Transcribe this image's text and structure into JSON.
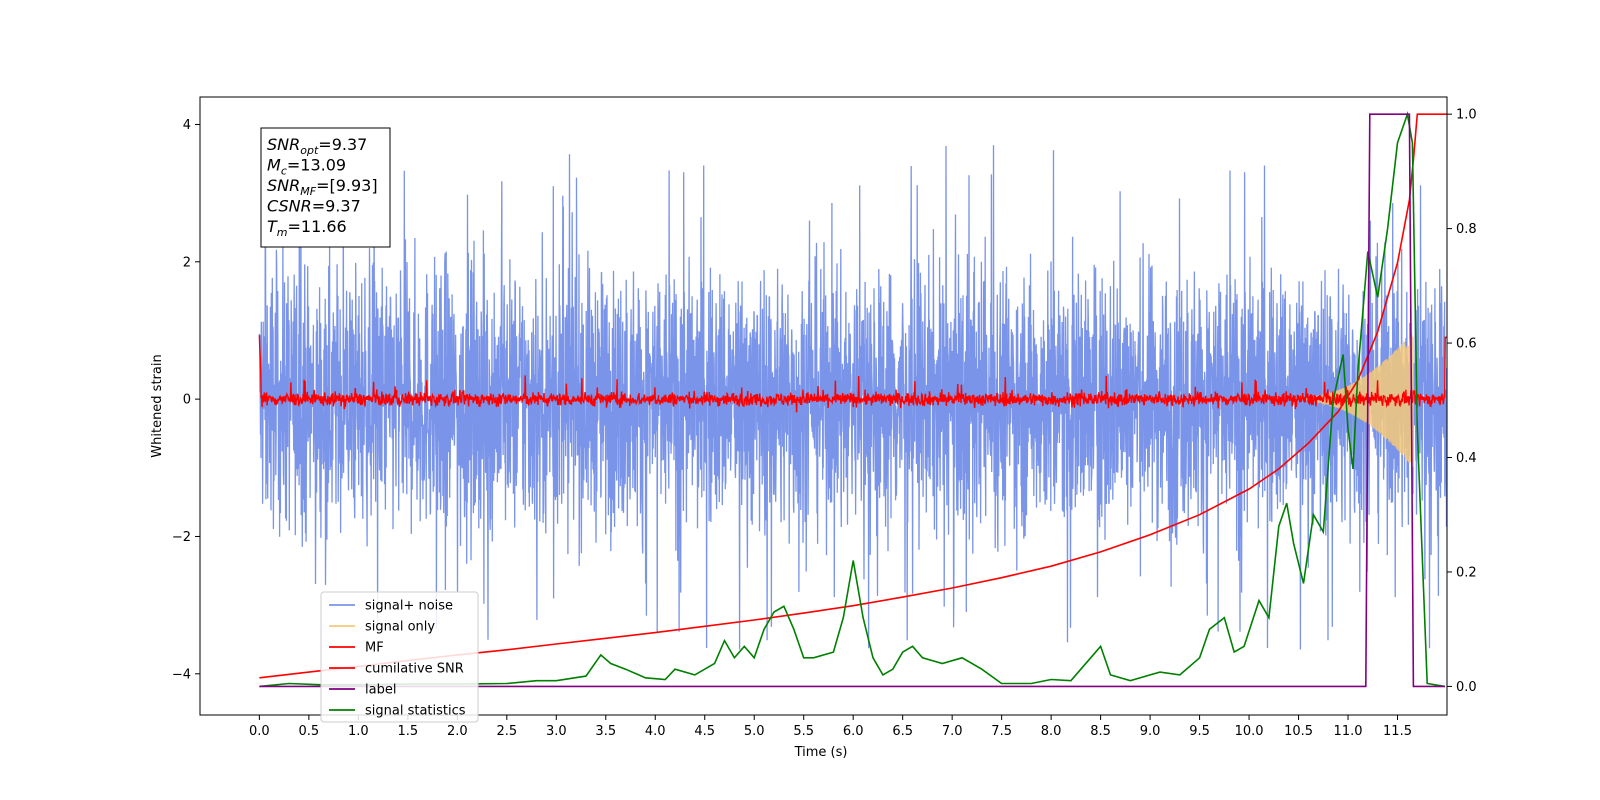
{
  "chart_data": {
    "type": "line",
    "title": "",
    "xlabel": "Time (s)",
    "ylabel": "Whitened strain",
    "ylabel_right": "",
    "xlim": [
      -0.6,
      12.0
    ],
    "ylim": [
      -4.6,
      4.4
    ],
    "ylim_right": [
      -0.05,
      1.03
    ],
    "x_ticks": [
      0.0,
      0.5,
      1.0,
      1.5,
      2.0,
      2.5,
      3.0,
      3.5,
      4.0,
      4.5,
      5.0,
      5.5,
      6.0,
      6.5,
      7.0,
      7.5,
      8.0,
      8.5,
      9.0,
      9.5,
      10.0,
      10.5,
      11.0,
      11.5
    ],
    "y_ticks": [
      -4,
      -2,
      0,
      2,
      4
    ],
    "y_ticks_right": [
      0.0,
      0.2,
      0.4,
      0.6,
      0.8,
      1.0
    ],
    "grid": false,
    "legend_position": "lower-left",
    "annotation": {
      "lines": [
        {
          "base": "SNR",
          "sub": "opt",
          "value": "=9.37"
        },
        {
          "base": "M",
          "sub": "c",
          "value": "=13.09"
        },
        {
          "base": "SNR",
          "sub": "MF",
          "value": "=[9.93]"
        },
        {
          "base": "CSNR",
          "sub": "",
          "value": "=9.37"
        },
        {
          "base": "T",
          "sub": "m",
          "value": "=11.66"
        }
      ]
    },
    "series": [
      {
        "name": "signal+ noise",
        "color": "#7994e8",
        "axis": "left",
        "kind": "noise",
        "x_range": [
          0.0,
          12.0
        ],
        "amplitude_typical": 1.5,
        "peak_max": 3.98,
        "trough_min": -4.1
      },
      {
        "name": "signal only",
        "color": "#f5c97a",
        "axis": "left",
        "kind": "chirp",
        "x_range": [
          10.4,
          11.66
        ],
        "envelope_max": 1.0
      },
      {
        "name": "MF",
        "color": "#ff0000",
        "axis": "left",
        "kind": "noise",
        "x_range": [
          0.0,
          12.0
        ],
        "amplitude_typical": 0.12,
        "start_value": 1.0,
        "end_value": 0.9
      },
      {
        "name": "cumilative SNR",
        "color": "#ff0000",
        "axis": "right",
        "x": [
          0.0,
          0.5,
          1.0,
          1.5,
          2.0,
          2.5,
          3.0,
          3.5,
          4.0,
          4.5,
          5.0,
          5.5,
          6.0,
          6.5,
          7.0,
          7.5,
          8.0,
          8.5,
          9.0,
          9.5,
          10.0,
          10.3,
          10.6,
          10.9,
          11.1,
          11.3,
          11.5,
          11.62,
          11.66,
          11.7,
          12.0
        ],
        "values": [
          0.015,
          0.025,
          0.035,
          0.045,
          0.055,
          0.064,
          0.074,
          0.084,
          0.094,
          0.105,
          0.116,
          0.128,
          0.141,
          0.156,
          0.172,
          0.19,
          0.21,
          0.235,
          0.265,
          0.3,
          0.345,
          0.38,
          0.425,
          0.48,
          0.535,
          0.62,
          0.74,
          0.85,
          0.92,
          1.0,
          1.0
        ]
      },
      {
        "name": "label",
        "color": "#800080",
        "axis": "right",
        "x": [
          0.0,
          11.18,
          11.22,
          11.62,
          11.66,
          11.98
        ],
        "values": [
          0.0,
          0.0,
          1.0,
          1.0,
          0.0,
          0.0
        ]
      },
      {
        "name": "signal statistics",
        "color": "#008000",
        "axis": "right",
        "x": [
          0.0,
          0.3,
          0.6,
          1.0,
          1.5,
          2.0,
          2.5,
          2.8,
          3.0,
          3.3,
          3.45,
          3.55,
          3.7,
          3.9,
          4.1,
          4.2,
          4.4,
          4.6,
          4.7,
          4.8,
          4.9,
          5.0,
          5.1,
          5.2,
          5.3,
          5.4,
          5.5,
          5.6,
          5.8,
          5.9,
          6.0,
          6.1,
          6.2,
          6.3,
          6.4,
          6.5,
          6.6,
          6.7,
          6.9,
          7.1,
          7.3,
          7.5,
          7.8,
          8.0,
          8.2,
          8.4,
          8.5,
          8.6,
          8.8,
          9.0,
          9.1,
          9.3,
          9.5,
          9.6,
          9.75,
          9.85,
          9.95,
          10.1,
          10.2,
          10.3,
          10.38,
          10.45,
          10.55,
          10.65,
          10.75,
          10.85,
          10.95,
          11.0,
          11.05,
          11.1,
          11.2,
          11.3,
          11.4,
          11.5,
          11.6,
          11.65,
          11.7,
          11.8,
          11.98
        ],
        "values": [
          0.0,
          0.005,
          0.003,
          0.003,
          0.004,
          0.004,
          0.005,
          0.01,
          0.01,
          0.018,
          0.055,
          0.04,
          0.03,
          0.015,
          0.012,
          0.03,
          0.02,
          0.04,
          0.08,
          0.05,
          0.07,
          0.05,
          0.1,
          0.13,
          0.14,
          0.1,
          0.05,
          0.05,
          0.06,
          0.12,
          0.22,
          0.12,
          0.05,
          0.02,
          0.03,
          0.06,
          0.07,
          0.05,
          0.04,
          0.05,
          0.03,
          0.005,
          0.005,
          0.012,
          0.01,
          0.05,
          0.07,
          0.02,
          0.01,
          0.02,
          0.025,
          0.02,
          0.05,
          0.1,
          0.12,
          0.06,
          0.07,
          0.15,
          0.12,
          0.28,
          0.32,
          0.25,
          0.18,
          0.3,
          0.27,
          0.5,
          0.58,
          0.45,
          0.38,
          0.55,
          0.76,
          0.68,
          0.8,
          0.95,
          1.0,
          0.95,
          0.45,
          0.005,
          0.0
        ]
      }
    ]
  }
}
